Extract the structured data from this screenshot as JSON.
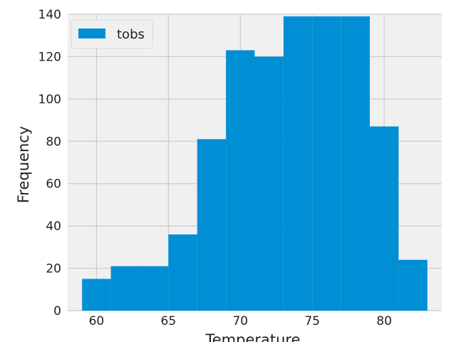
{
  "chart_data": {
    "type": "bar",
    "subtype": "histogram",
    "bin_edges": [
      59,
      61,
      63,
      65,
      67,
      69,
      71,
      73,
      75,
      77,
      79,
      81,
      83
    ],
    "values": [
      15,
      21,
      21,
      36,
      81,
      123,
      120,
      139,
      139,
      139,
      87,
      24
    ],
    "series": [
      {
        "name": "tobs",
        "color": "#008fd5"
      }
    ],
    "xlabel": "Temperature",
    "ylabel": "Frequency",
    "xlim": [
      58,
      84
    ],
    "ylim": [
      0,
      140
    ],
    "xticks": [
      60,
      65,
      70,
      75,
      80
    ],
    "yticks": [
      0,
      20,
      40,
      60,
      80,
      100,
      120,
      140
    ],
    "grid": true,
    "legend_position": "top-left",
    "colors": {
      "plot_background": "#f0f0f0",
      "grid": "#cbcbcb",
      "bar": "#008fd5"
    }
  }
}
